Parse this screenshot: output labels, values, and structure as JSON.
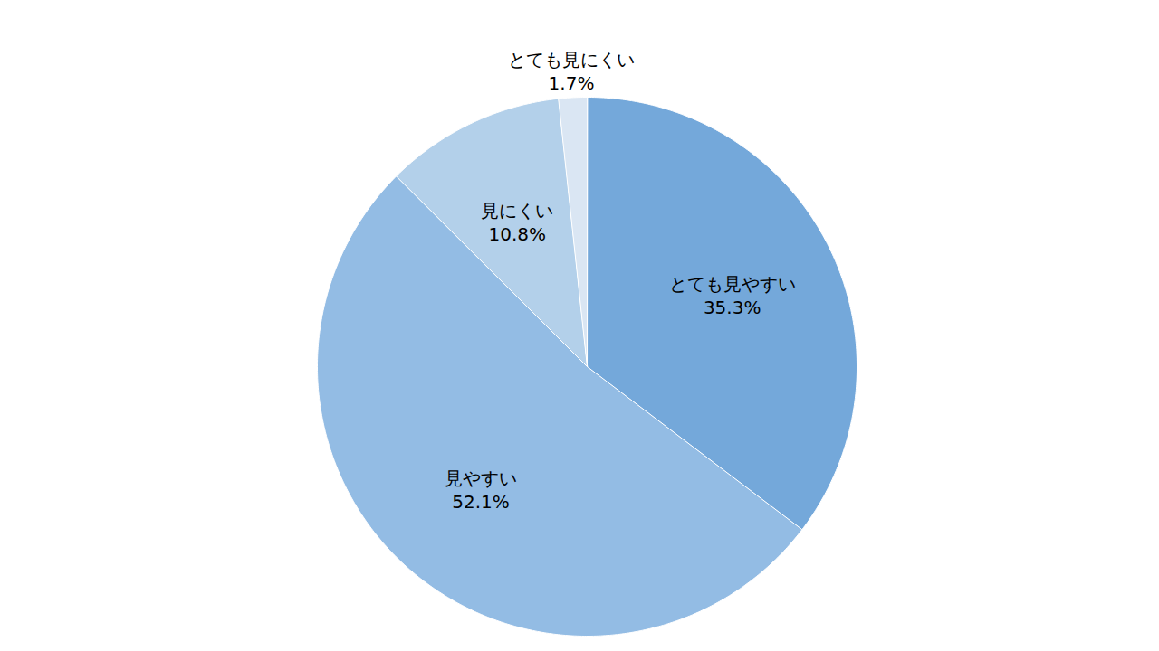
{
  "chart_data": {
    "type": "pie",
    "categories": [
      "とても見やすい",
      "見やすい",
      "見にくい",
      "とても見にくい"
    ],
    "values": [
      35.3,
      52.1,
      10.8,
      1.7
    ],
    "value_labels": [
      "35.3%",
      "52.1%",
      "10.8%",
      "1.7%"
    ],
    "colors": [
      "#74a8da",
      "#93bce4",
      "#b3d0ea",
      "#dae6f3"
    ],
    "data_labels": true
  }
}
